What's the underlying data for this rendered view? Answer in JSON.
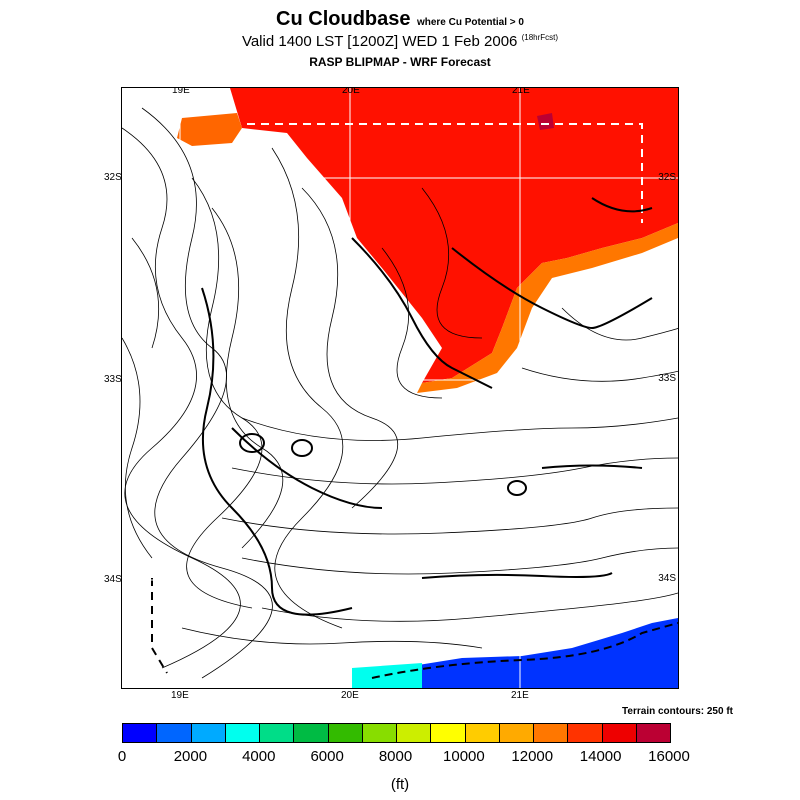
{
  "title": "Cu Cloudbase",
  "title_qualifier": "where Cu Potential > 0",
  "valid_line": "Valid 1400 LST [1200Z] WED 1 Feb 2006",
  "valid_suffix": "(18hrFcst)",
  "source_line": "RASP BLIPMAP - WRF Forecast",
  "terrain_note": "Terrain contours: 250 ft",
  "units": "(ft)",
  "top_lon_labels": [
    "19E",
    "20E",
    "21E"
  ],
  "bottom_lon_labels": [
    "19E",
    "20E",
    "21E"
  ],
  "left_lat_labels": [
    "32S",
    "33S",
    "34S"
  ],
  "right_lat_labels": [
    "32S",
    "33S",
    "34S"
  ],
  "colorbar": {
    "labels": [
      "0",
      "2000",
      "4000",
      "6000",
      "8000",
      "10000",
      "12000",
      "14000",
      "16000"
    ],
    "colors": [
      "#0000ff",
      "#0066ff",
      "#00aaff",
      "#00ffee",
      "#00dd88",
      "#00bb44",
      "#33bb00",
      "#88dd00",
      "#ccee00",
      "#ffff00",
      "#ffcc00",
      "#ffaa00",
      "#ff7700",
      "#ff3300",
      "#ee0000",
      "#bb0033"
    ]
  }
}
